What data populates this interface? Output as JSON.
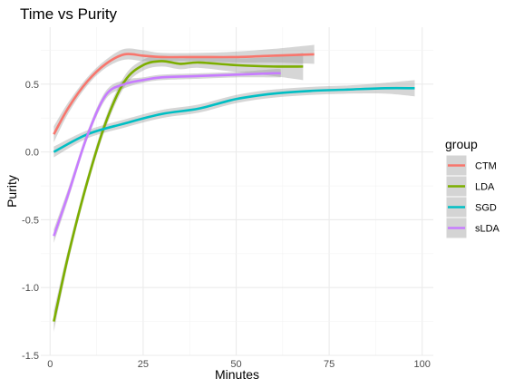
{
  "chart_data": {
    "type": "line",
    "title": "Time vs Purity",
    "xlabel": "Minutes",
    "ylabel": "Purity",
    "xlim": [
      -2.5,
      103
    ],
    "ylim": [
      -1.5,
      0.92
    ],
    "x_ticks": [
      0,
      25,
      50,
      75,
      100
    ],
    "y_ticks": [
      -1.5,
      -1.0,
      -0.5,
      0.0,
      0.5
    ],
    "x_tick_labels": [
      "0",
      "25",
      "50",
      "75",
      "100"
    ],
    "y_tick_labels": [
      "-1.5",
      "-1.0",
      "-0.5",
      "0.0",
      "0.5"
    ],
    "grid": true,
    "smooth_confidence_band": true,
    "legend": {
      "title": "group",
      "position": "right"
    },
    "series": [
      {
        "name": "CTM",
        "color": "#F8766D",
        "x": [
          1,
          5,
          10,
          15,
          20,
          25,
          30,
          40,
          50,
          60,
          71
        ],
        "y": [
          0.13,
          0.33,
          0.52,
          0.65,
          0.72,
          0.71,
          0.7,
          0.7,
          0.7,
          0.71,
          0.72
        ],
        "se": [
          0.06,
          0.04,
          0.03,
          0.03,
          0.04,
          0.04,
          0.03,
          0.03,
          0.04,
          0.05,
          0.07
        ]
      },
      {
        "name": "LDA",
        "color": "#7CAE00",
        "x": [
          1,
          5,
          10,
          15,
          20,
          25,
          30,
          35,
          40,
          50,
          60,
          68
        ],
        "y": [
          -1.25,
          -0.75,
          -0.22,
          0.22,
          0.52,
          0.64,
          0.67,
          0.65,
          0.66,
          0.64,
          0.63,
          0.63
        ],
        "se": [
          0.08,
          0.05,
          0.04,
          0.04,
          0.04,
          0.04,
          0.04,
          0.04,
          0.04,
          0.05,
          0.07,
          0.1
        ]
      },
      {
        "name": "SGD",
        "color": "#00BFC4",
        "x": [
          1,
          10,
          20,
          30,
          40,
          50,
          60,
          70,
          80,
          90,
          98
        ],
        "y": [
          0.0,
          0.13,
          0.21,
          0.28,
          0.32,
          0.39,
          0.43,
          0.45,
          0.46,
          0.47,
          0.47
        ],
        "se": [
          0.04,
          0.03,
          0.03,
          0.03,
          0.03,
          0.03,
          0.03,
          0.03,
          0.03,
          0.04,
          0.06
        ]
      },
      {
        "name": "sLDA",
        "color": "#C77CFF",
        "x": [
          1,
          5,
          10,
          15,
          20,
          25,
          30,
          40,
          50,
          60,
          62
        ],
        "y": [
          -0.62,
          -0.3,
          0.12,
          0.42,
          0.5,
          0.53,
          0.55,
          0.56,
          0.57,
          0.58,
          0.58
        ],
        "se": [
          0.05,
          0.04,
          0.03,
          0.03,
          0.03,
          0.02,
          0.02,
          0.02,
          0.02,
          0.03,
          0.03
        ]
      }
    ]
  }
}
